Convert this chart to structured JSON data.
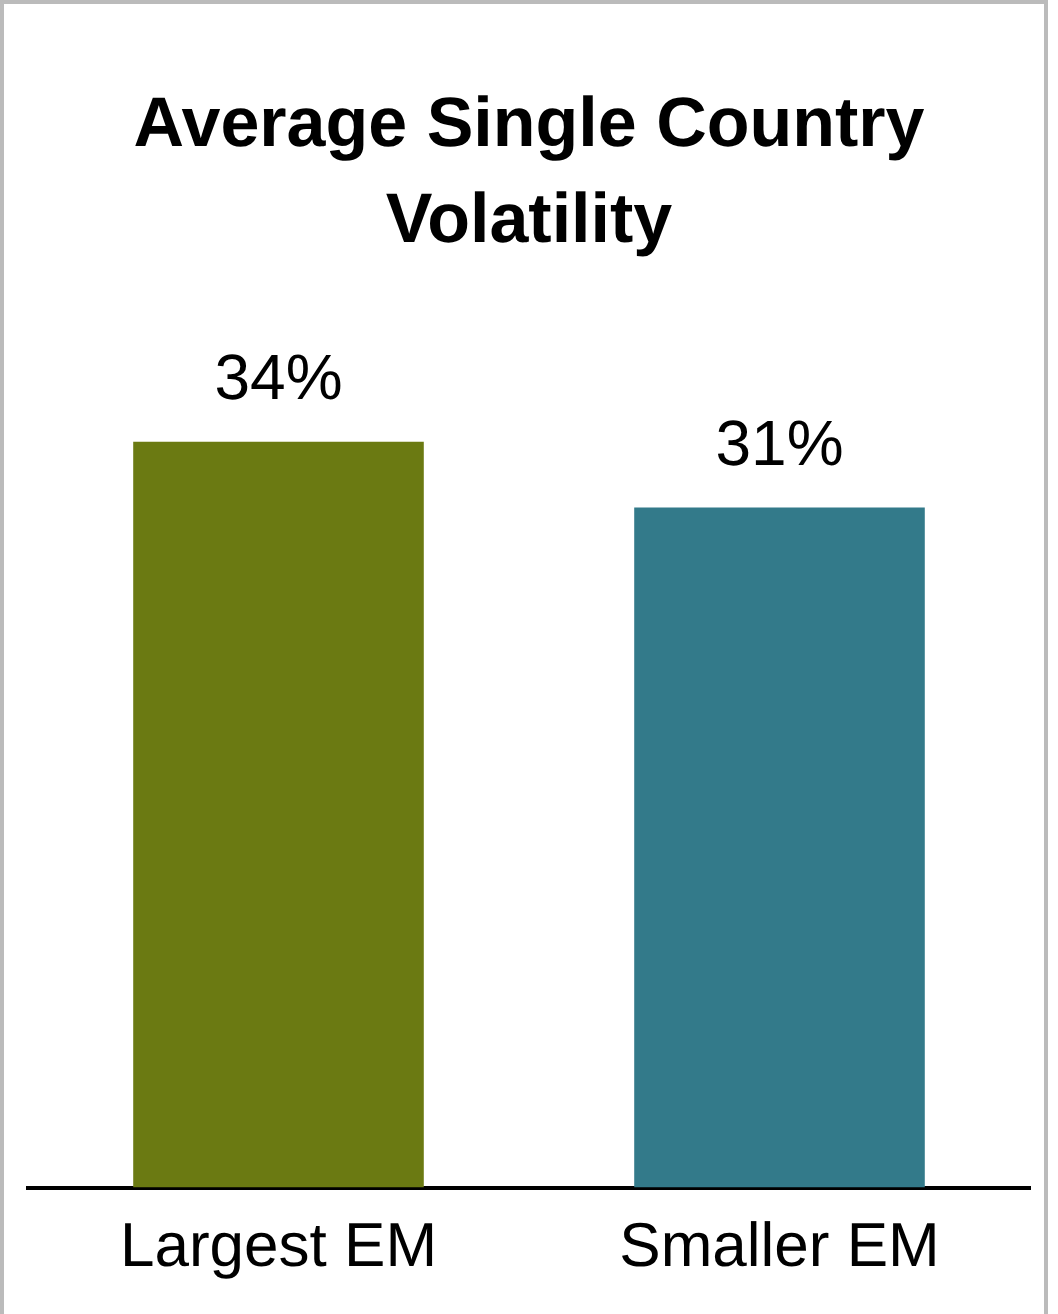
{
  "chart_data": {
    "type": "bar",
    "title": "Average Single Country Volatility",
    "categories": [
      "Largest EM",
      "Smaller EM"
    ],
    "values": [
      34,
      31
    ],
    "colors": [
      "#6b7a12",
      "#337a8a"
    ],
    "value_labels": [
      "34%",
      "31%"
    ],
    "grid": false,
    "legend": false
  }
}
